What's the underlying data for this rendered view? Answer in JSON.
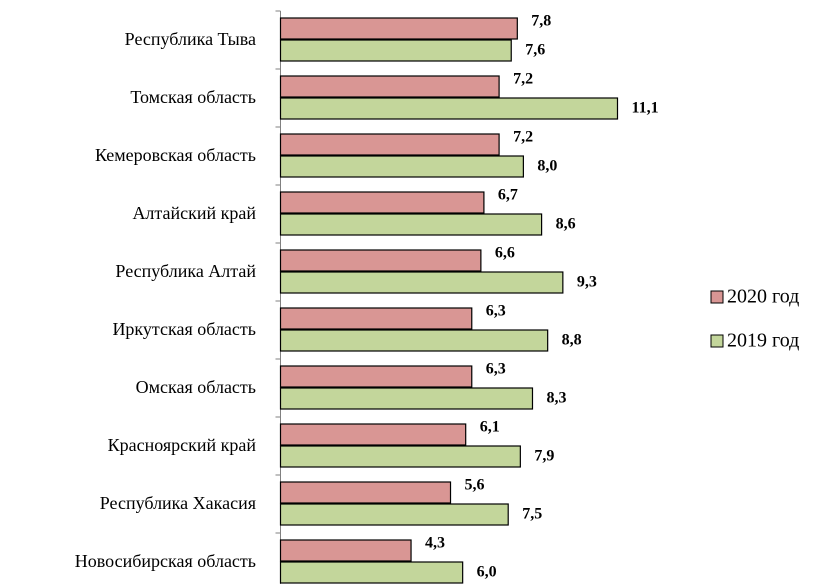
{
  "chart_data": {
    "type": "bar",
    "orientation": "horizontal",
    "categories": [
      "Республика Тыва",
      "Томская область",
      "Кемеровская область",
      "Алтайский край",
      "Республика Алтай",
      "Иркутская область",
      "Омская область",
      "Красноярский край",
      "Республика Хакасия",
      "Новосибирская область"
    ],
    "series": [
      {
        "name": "2020 год",
        "color": "#d99694",
        "values": [
          7.8,
          7.2,
          7.2,
          6.7,
          6.6,
          6.3,
          6.3,
          6.1,
          5.6,
          4.3
        ],
        "value_labels": [
          "7,8",
          "7,2",
          "7,2",
          "6,7",
          "6,6",
          "6,3",
          "6,3",
          "6,1",
          "5,6",
          "4,3"
        ]
      },
      {
        "name": "2019 год",
        "color": "#c3d69b",
        "values": [
          7.6,
          11.1,
          8.0,
          8.6,
          9.3,
          8.8,
          8.3,
          7.9,
          7.5,
          6.0
        ],
        "value_labels": [
          "7,6",
          "11,1",
          "8,0",
          "8,6",
          "9,3",
          "8,8",
          "8,3",
          "7,9",
          "7,5",
          "6,0"
        ]
      }
    ],
    "legend": "right"
  }
}
